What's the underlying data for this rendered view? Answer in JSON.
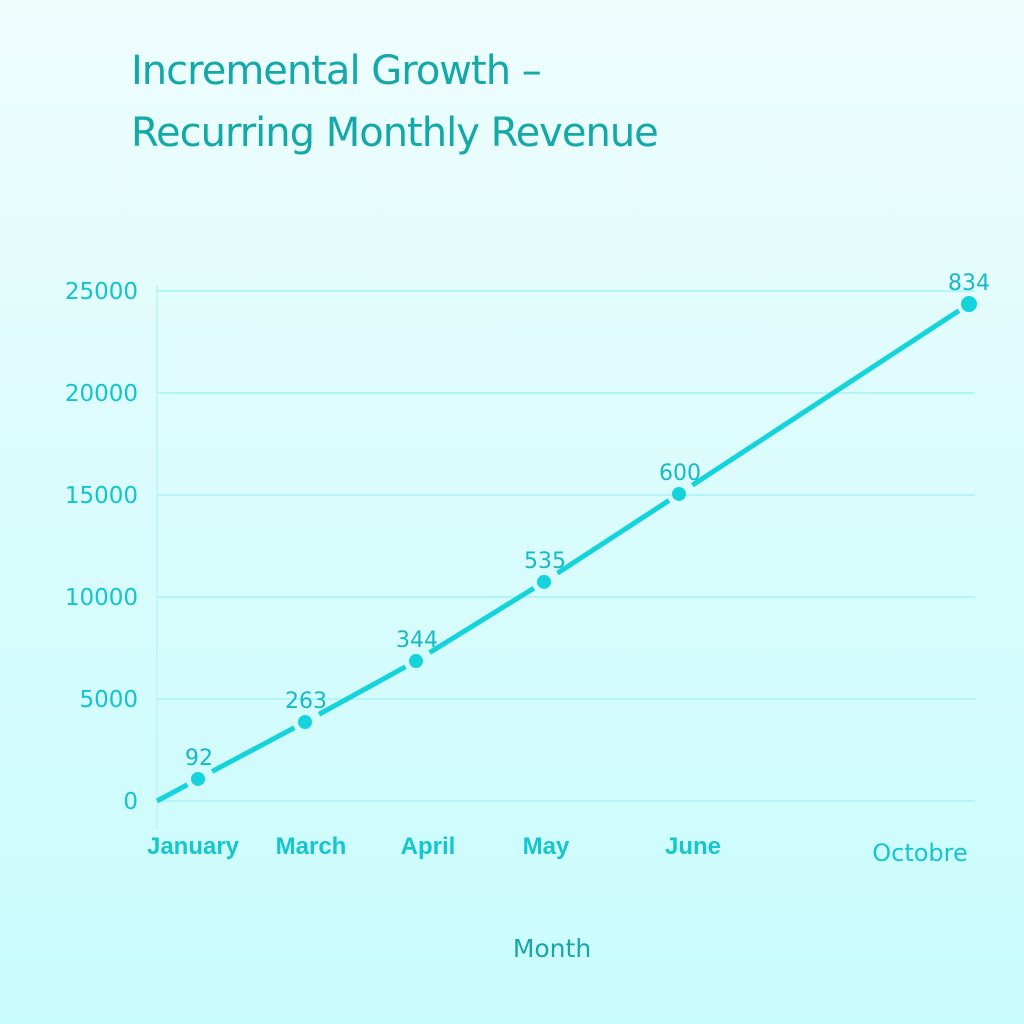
{
  "chart_data": {
    "type": "line",
    "title": [
      "Incremental Growth –",
      "Recurring Monthly Revenue"
    ],
    "xlabel": "Month",
    "ylabel": "",
    "categories": [
      "January",
      "March",
      "April",
      "May",
      "June",
      "Octobre"
    ],
    "series": [
      {
        "name": "Recurring Monthly Revenue",
        "values": [
          1080,
          3870,
          6860,
          10740,
          15050,
          24360
        ],
        "data_labels": [
          "92",
          "263",
          "344",
          "535",
          "600",
          "834"
        ]
      }
    ],
    "line_start": {
      "x": "origin",
      "y": 0
    },
    "ylim": [
      0,
      25000
    ],
    "yticks": [
      "0",
      "5000",
      "10000",
      "15000",
      "20000",
      "25000"
    ],
    "grid": true,
    "legend": "none",
    "colors": {
      "line": "#14d3db",
      "title": "#14a8a8",
      "ticks": "#13c4cc",
      "grid": "#b4f4f6"
    }
  }
}
